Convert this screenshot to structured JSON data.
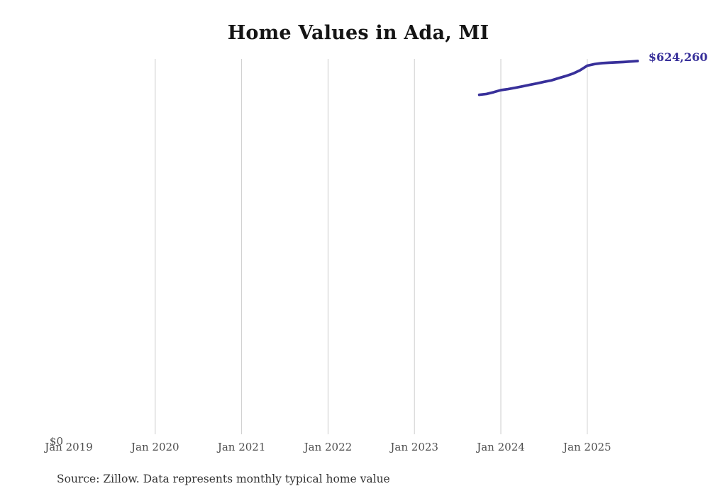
{
  "title": "Home Values in Ada, MI",
  "source_note": "Source: Zillow. Data represents monthly typical home value",
  "y_axis": {
    "zero_label": "$0"
  },
  "x_axis": {
    "ticks": [
      {
        "label": "Jan 2019",
        "gridline": false
      },
      {
        "label": "Jan 2020",
        "gridline": true
      },
      {
        "label": "Jan 2021",
        "gridline": true
      },
      {
        "label": "Jan 2022",
        "gridline": true
      },
      {
        "label": "Jan 2023",
        "gridline": true
      },
      {
        "label": "Jan 2024",
        "gridline": true
      },
      {
        "label": "Jan 2025",
        "gridline": true
      }
    ]
  },
  "latest_value_label": "$624,260",
  "colors": {
    "line": "#38309a",
    "value_label": "#38309a",
    "grid": "#cccccc",
    "title": "#151515",
    "axis_label": "#4d4d4d",
    "source": "#333333",
    "background": "#ffffff"
  },
  "chart_data": {
    "type": "line",
    "title": "Home Values in Ada, MI",
    "series_name": "Monthly typical home value",
    "x": [
      "Oct 2023",
      "Nov 2023",
      "Dec 2023",
      "Jan 2024",
      "Feb 2024",
      "Mar 2024",
      "Apr 2024",
      "May 2024",
      "Jun 2024",
      "Jul 2024",
      "Aug 2024",
      "Sep 2024",
      "Oct 2024",
      "Nov 2024",
      "Dec 2024",
      "Jan 2025",
      "Feb 2025",
      "Mar 2025",
      "Apr 2025",
      "May 2025",
      "Jun 2025",
      "Jul 2025",
      "Aug 2025"
    ],
    "values": [
      568600,
      570000,
      572900,
      576300,
      578000,
      580200,
      582500,
      585000,
      587300,
      590000,
      592400,
      596000,
      599500,
      603500,
      609000,
      616500,
      619200,
      620800,
      621500,
      622000,
      622600,
      623500,
      624260
    ],
    "xlabel": "",
    "ylabel": "",
    "ylim": [
      0,
      624260
    ],
    "x_axis_range": [
      "Jan 2019",
      "Aug 2025"
    ],
    "grid": "vertical-yearly-gridlines",
    "legend": "none",
    "end_annotation": "$624,260"
  }
}
